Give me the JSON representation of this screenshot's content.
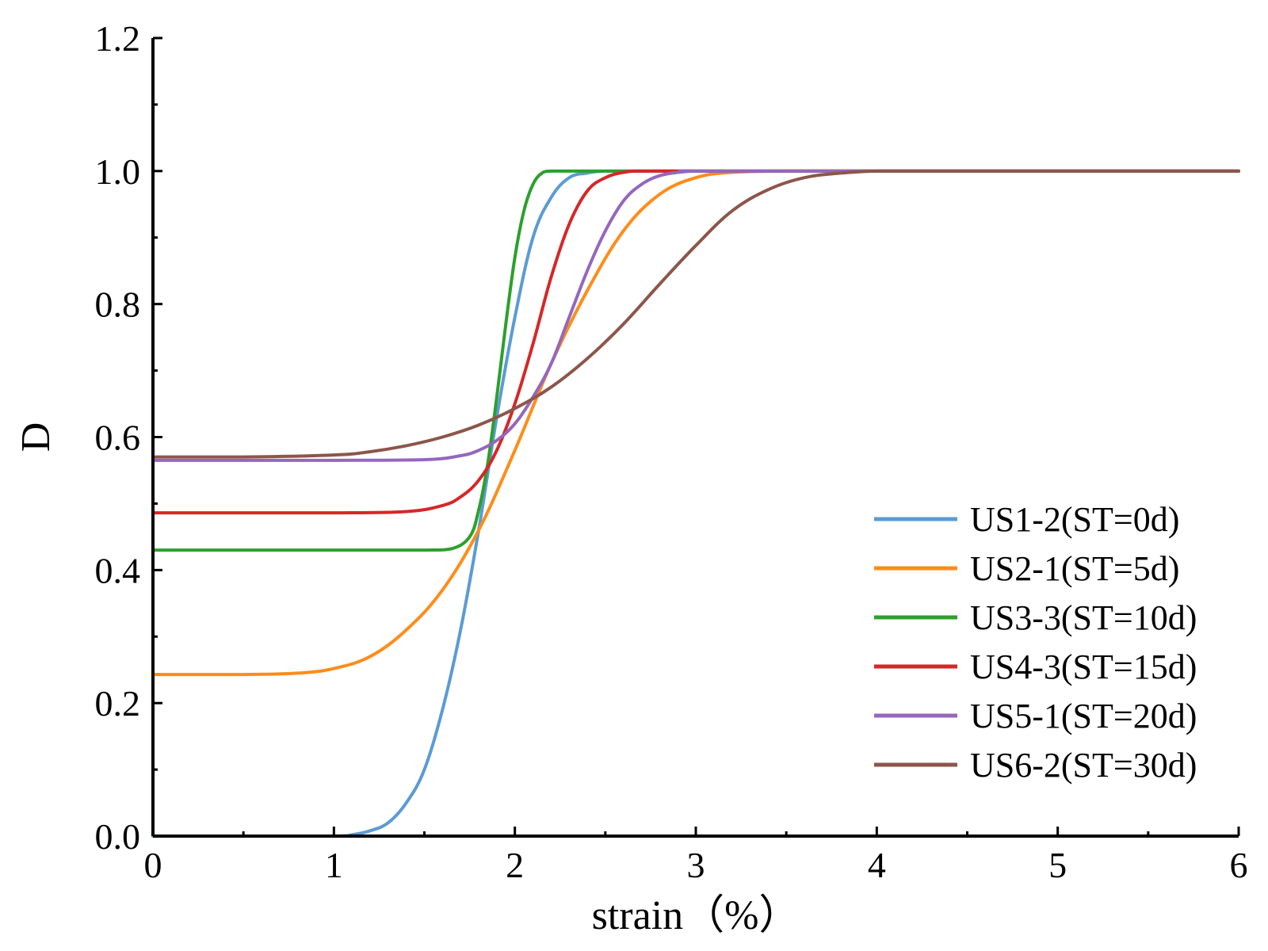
{
  "chart_data": {
    "type": "line",
    "title": "",
    "xlabel": "strain（%）",
    "ylabel": "D",
    "xlim": [
      0,
      6
    ],
    "ylim": [
      0,
      1.2
    ],
    "x_ticks": [
      0,
      1,
      2,
      3,
      4,
      5,
      6
    ],
    "x_tick_labels": [
      "0",
      "1",
      "2",
      "3",
      "4",
      "5",
      "6"
    ],
    "y_ticks": [
      0,
      0.2,
      0.4,
      0.6,
      0.8,
      1.0,
      1.2
    ],
    "y_tick_labels": [
      "0.0",
      "0.2",
      "0.4",
      "0.6",
      "0.8",
      "1.0",
      "1.2"
    ],
    "grid": false,
    "legend_position": "right-middle",
    "series": [
      {
        "name": "US1-2(ST=0d)",
        "color": "#5b9bd5",
        "x": [
          0,
          0.5,
          1.0,
          1.1,
          1.2,
          1.3,
          1.4,
          1.5,
          1.6,
          1.7,
          1.8,
          1.9,
          2.0,
          2.1,
          2.2,
          2.3,
          2.4,
          2.5,
          2.7,
          3.0,
          4.0,
          6.0
        ],
        "y": [
          0,
          0,
          0,
          0.002,
          0.008,
          0.02,
          0.05,
          0.1,
          0.19,
          0.31,
          0.46,
          0.63,
          0.78,
          0.9,
          0.96,
          0.99,
          0.997,
          1.0,
          1.0,
          1.0,
          1.0,
          1.0
        ]
      },
      {
        "name": "US2-1(ST=5d)",
        "color": "#ff8c1a",
        "x": [
          0,
          0.5,
          0.8,
          1.0,
          1.2,
          1.4,
          1.6,
          1.8,
          2.0,
          2.2,
          2.4,
          2.6,
          2.8,
          3.0,
          3.2,
          3.5,
          4.0,
          6.0
        ],
        "y": [
          0.243,
          0.243,
          0.245,
          0.252,
          0.27,
          0.31,
          0.37,
          0.46,
          0.58,
          0.71,
          0.82,
          0.91,
          0.965,
          0.99,
          0.998,
          1.0,
          1.0,
          1.0
        ]
      },
      {
        "name": "US3-3(ST=10d)",
        "color": "#2ca02c",
        "x": [
          0,
          0.5,
          1.0,
          1.5,
          1.65,
          1.75,
          1.8,
          1.85,
          1.9,
          1.95,
          2.0,
          2.05,
          2.1,
          2.15,
          2.2,
          2.3,
          2.5,
          3.0,
          6.0
        ],
        "y": [
          0.43,
          0.43,
          0.43,
          0.43,
          0.432,
          0.45,
          0.49,
          0.56,
          0.66,
          0.77,
          0.87,
          0.94,
          0.98,
          0.997,
          1.0,
          1.0,
          1.0,
          1.0,
          1.0
        ]
      },
      {
        "name": "US4-3(ST=15d)",
        "color": "#d62728",
        "x": [
          0,
          0.5,
          1.0,
          1.4,
          1.6,
          1.7,
          1.8,
          1.9,
          2.0,
          2.1,
          2.2,
          2.3,
          2.4,
          2.5,
          2.6,
          2.7,
          3.0,
          6.0
        ],
        "y": [
          0.486,
          0.486,
          0.486,
          0.488,
          0.497,
          0.51,
          0.535,
          0.58,
          0.65,
          0.74,
          0.84,
          0.92,
          0.97,
          0.99,
          0.998,
          1.0,
          1.0,
          1.0
        ]
      },
      {
        "name": "US5-1(ST=20d)",
        "color": "#9467bd",
        "x": [
          0,
          0.5,
          1.0,
          1.5,
          1.7,
          1.8,
          1.9,
          2.0,
          2.1,
          2.2,
          2.3,
          2.4,
          2.5,
          2.6,
          2.7,
          2.8,
          2.9,
          3.0,
          3.2,
          6.0
        ],
        "y": [
          0.565,
          0.565,
          0.565,
          0.566,
          0.572,
          0.58,
          0.595,
          0.62,
          0.66,
          0.71,
          0.78,
          0.85,
          0.91,
          0.955,
          0.98,
          0.993,
          0.998,
          1.0,
          1.0,
          1.0
        ]
      },
      {
        "name": "US6-2(ST=30d)",
        "color": "#8c564b",
        "x": [
          0,
          0.5,
          1.0,
          1.2,
          1.4,
          1.6,
          1.8,
          2.0,
          2.2,
          2.4,
          2.6,
          2.8,
          3.0,
          3.2,
          3.4,
          3.6,
          3.8,
          4.0,
          4.2,
          6.0
        ],
        "y": [
          0.57,
          0.57,
          0.573,
          0.578,
          0.587,
          0.6,
          0.618,
          0.643,
          0.675,
          0.718,
          0.77,
          0.83,
          0.888,
          0.94,
          0.972,
          0.99,
          0.997,
          1.0,
          1.0,
          1.0
        ]
      }
    ]
  }
}
